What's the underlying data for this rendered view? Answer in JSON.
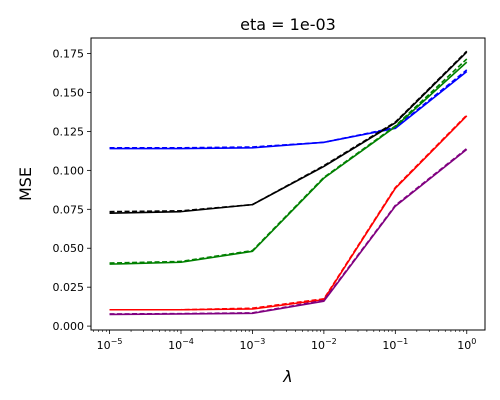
{
  "chart_data": {
    "type": "line",
    "title": "eta = 1e-03",
    "xlabel": "λ",
    "ylabel": "MSE",
    "xscale": "log",
    "xlim": [
      5.5e-06,
      1.8
    ],
    "ylim": [
      -0.0025,
      0.185
    ],
    "grid": false,
    "x": [
      1e-05,
      0.0001,
      0.001,
      0.01,
      0.1,
      1
    ],
    "x_ticks": [
      {
        "base": "10",
        "exp": "−5",
        "value": 1e-05
      },
      {
        "base": "10",
        "exp": "−4",
        "value": 0.0001
      },
      {
        "base": "10",
        "exp": "−3",
        "value": 0.001
      },
      {
        "base": "10",
        "exp": "−2",
        "value": 0.01
      },
      {
        "base": "10",
        "exp": "−1",
        "value": 0.1
      },
      {
        "base": "10",
        "exp": "0",
        "value": 1
      }
    ],
    "y_ticks": [
      {
        "label": "0.000",
        "value": 0.0
      },
      {
        "label": "0.025",
        "value": 0.025
      },
      {
        "label": "0.050",
        "value": 0.05
      },
      {
        "label": "0.075",
        "value": 0.075
      },
      {
        "label": "0.100",
        "value": 0.1
      },
      {
        "label": "0.125",
        "value": 0.125
      },
      {
        "label": "0.150",
        "value": 0.15
      },
      {
        "label": "0.175",
        "value": 0.175
      }
    ],
    "series": [
      {
        "color": "#0000ff",
        "style": "dashed",
        "values": [
          0.1145,
          0.1145,
          0.115,
          0.118,
          0.1275,
          0.1645
        ]
      },
      {
        "color": "#0000ff",
        "style": "solid",
        "values": [
          0.114,
          0.114,
          0.1145,
          0.118,
          0.127,
          0.1635
        ]
      },
      {
        "color": "#000000",
        "style": "dashed",
        "values": [
          0.0735,
          0.074,
          0.078,
          0.103,
          0.131,
          0.1765
        ]
      },
      {
        "color": "#000000",
        "style": "solid",
        "values": [
          0.0725,
          0.0735,
          0.078,
          0.1025,
          0.1305,
          0.176
        ]
      },
      {
        "color": "#008000",
        "style": "dashed",
        "values": [
          0.0405,
          0.0415,
          0.0485,
          0.0955,
          0.1285,
          0.1715
        ]
      },
      {
        "color": "#008000",
        "style": "solid",
        "values": [
          0.0398,
          0.041,
          0.048,
          0.095,
          0.128,
          0.1695
        ]
      },
      {
        "color": "#ff0000",
        "style": "dashed",
        "values": [
          0.0105,
          0.0105,
          0.0115,
          0.0175,
          0.089,
          0.1355
        ]
      },
      {
        "color": "#ff0000",
        "style": "solid",
        "values": [
          0.0105,
          0.0105,
          0.011,
          0.017,
          0.0885,
          0.135
        ]
      },
      {
        "color": "#800080",
        "style": "dashed",
        "values": [
          0.0078,
          0.008,
          0.0085,
          0.0165,
          0.0775,
          0.114
        ]
      },
      {
        "color": "#800080",
        "style": "solid",
        "values": [
          0.0075,
          0.0078,
          0.0082,
          0.016,
          0.077,
          0.1135
        ]
      }
    ]
  }
}
